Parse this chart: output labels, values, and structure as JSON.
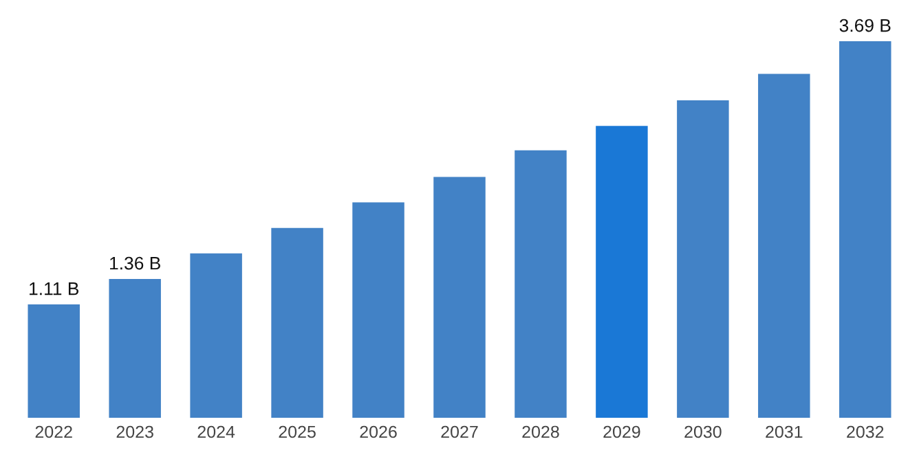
{
  "chart_data": {
    "type": "bar",
    "categories": [
      "2022",
      "2023",
      "2024",
      "2025",
      "2026",
      "2027",
      "2028",
      "2029",
      "2030",
      "2031",
      "2032"
    ],
    "values": [
      1.11,
      1.36,
      1.61,
      1.86,
      2.11,
      2.36,
      2.62,
      2.86,
      3.11,
      3.37,
      3.69
    ],
    "colors": [
      "#4282c6",
      "#4282c6",
      "#4282c6",
      "#4282c6",
      "#4282c6",
      "#4282c6",
      "#4282c6",
      "#1a78d6",
      "#4282c6",
      "#4282c6",
      "#4282c6"
    ],
    "value_labels": [
      "1.11 B",
      "1.36 B",
      null,
      null,
      null,
      null,
      null,
      null,
      null,
      null,
      "3.69 B"
    ],
    "tick_labels": "x",
    "grid": false,
    "legend": false
  }
}
